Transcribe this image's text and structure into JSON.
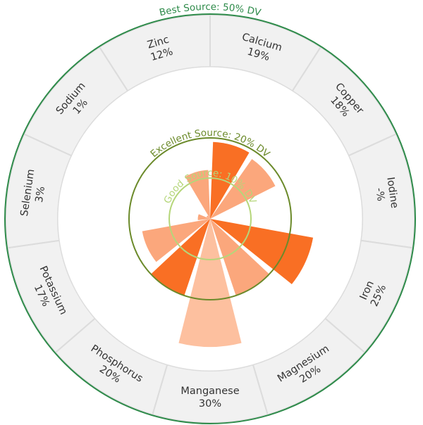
{
  "chart_data": {
    "type": "polar-bar",
    "title": "",
    "categories": [
      "Calcium",
      "Copper",
      "Iodine",
      "Iron",
      "Magnesium",
      "Manganese",
      "Phosphorus",
      "Potassium",
      "Selenium",
      "Sodium",
      "Zinc"
    ],
    "values": [
      19,
      18,
      null,
      25,
      20,
      30,
      20,
      17,
      3,
      1,
      12
    ],
    "value_labels": [
      "19%",
      "18%",
      "-%",
      "25%",
      "20%",
      "30%",
      "20%",
      "17%",
      "3%",
      "1%",
      "12%"
    ],
    "unit": "% DV",
    "thresholds": [
      {
        "label": "Good Source: 10% DV",
        "value": 10,
        "color": "#b5d67a"
      },
      {
        "label": "Excellent Source: 20% DV",
        "value": 20,
        "color": "#6b8a2a"
      },
      {
        "label": "Best Source: 50% DV",
        "value": 50,
        "color": "#2e8b4a"
      }
    ],
    "bar_colors": {
      "dark": "#f96f24",
      "light": "#fba77c",
      "lightest": "#fdc09f"
    }
  }
}
